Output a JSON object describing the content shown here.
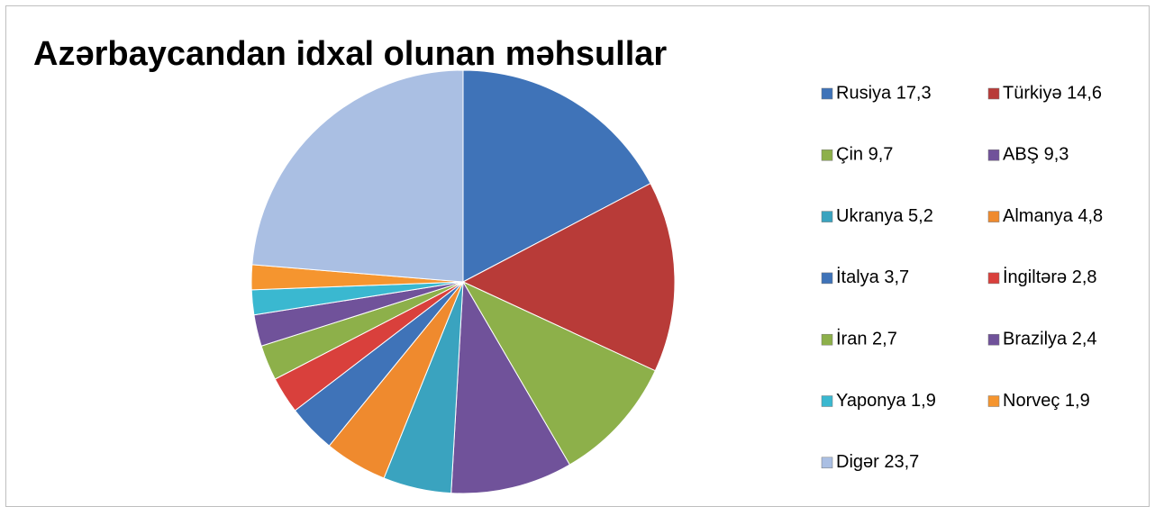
{
  "chart_data": {
    "type": "pie",
    "title": "Azərbaycandan idxal olunan məhsullar",
    "categories": [
      "Rusiya 17,3",
      "Türkiyə 14,6",
      "Çin 9,7",
      "ABŞ 9,3",
      "Ukranya 5,2",
      "Almanya 4,8",
      "İtalya 3,7",
      "İngiltərə 2,8",
      "İran 2,7",
      "Brazilya 2,4",
      "Yaponya 1,9",
      "Norveç 1,9",
      "Digər 23,7"
    ],
    "values": [
      17.3,
      14.6,
      9.7,
      9.3,
      5.2,
      4.8,
      3.7,
      2.8,
      2.7,
      2.4,
      1.9,
      1.9,
      23.7
    ],
    "colors": [
      "#3f73b8",
      "#b83b38",
      "#8db04a",
      "#70529a",
      "#3aa3bf",
      "#ef8a2e",
      "#3f73b8",
      "#d9403c",
      "#8db04a",
      "#70529a",
      "#3ab8d0",
      "#f5952f",
      "#aabfe3"
    ],
    "legend": "right"
  }
}
